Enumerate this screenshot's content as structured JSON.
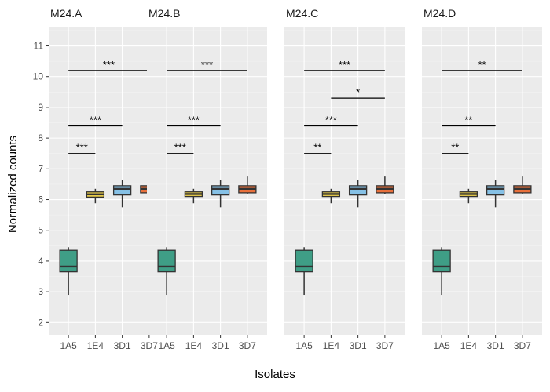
{
  "chart_data": {
    "type": "box",
    "xlabel": "Isolates",
    "ylabel": "Normalized counts",
    "ylim": [
      1.6,
      11.6
    ],
    "yticks": [
      2,
      3,
      4,
      5,
      6,
      7,
      8,
      9,
      10,
      11
    ],
    "categories": [
      "1A5",
      "1E4",
      "3D1",
      "3D7"
    ],
    "colors": {
      "1A5": "#3f9e86",
      "1E4": "#e8cc4a",
      "3D1": "#86c1e6",
      "3D7": "#e8703c"
    },
    "grid": true,
    "legend": "none",
    "panels": [
      {
        "title": "M24.A",
        "boxes": [
          {
            "category": "1A5",
            "min": 2.9,
            "q1": 3.65,
            "median": 3.82,
            "q3": 4.35,
            "max": 4.45
          },
          {
            "category": "1E4",
            "min": 5.88,
            "q1": 6.08,
            "median": 6.17,
            "q3": 6.25,
            "max": 6.35
          },
          {
            "category": "3D1",
            "min": 5.75,
            "q1": 6.15,
            "median": 6.35,
            "q3": 6.45,
            "max": 6.65
          },
          {
            "category": "3D7",
            "min": 6.18,
            "q1": 6.22,
            "median": 6.35,
            "q3": 6.45,
            "max": 6.75
          }
        ],
        "comparisons": [
          {
            "from": "1A5",
            "to": "1E4",
            "y": 7.5,
            "label": "***"
          },
          {
            "from": "1A5",
            "to": "3D1",
            "y": 8.4,
            "label": "***"
          },
          {
            "from": "1A5",
            "to": "3D7",
            "y": 10.2,
            "label": "***"
          }
        ]
      },
      {
        "title": "M24.B",
        "boxes": [
          {
            "category": "1A5",
            "min": 2.9,
            "q1": 3.65,
            "median": 3.82,
            "q3": 4.35,
            "max": 4.45
          },
          {
            "category": "1E4",
            "min": 5.88,
            "q1": 6.1,
            "median": 6.18,
            "q3": 6.25,
            "max": 6.35
          },
          {
            "category": "3D1",
            "min": 5.75,
            "q1": 6.15,
            "median": 6.35,
            "q3": 6.45,
            "max": 6.65
          },
          {
            "category": "3D7",
            "min": 6.18,
            "q1": 6.22,
            "median": 6.35,
            "q3": 6.45,
            "max": 6.75
          }
        ],
        "comparisons": [
          {
            "from": "1A5",
            "to": "1E4",
            "y": 7.5,
            "label": "***"
          },
          {
            "from": "1A5",
            "to": "3D1",
            "y": 8.4,
            "label": "***"
          },
          {
            "from": "1A5",
            "to": "3D7",
            "y": 10.2,
            "label": "***"
          }
        ]
      },
      {
        "title": "M24.C",
        "boxes": [
          {
            "category": "1A5",
            "min": 2.9,
            "q1": 3.65,
            "median": 3.82,
            "q3": 4.35,
            "max": 4.45
          },
          {
            "category": "1E4",
            "min": 5.88,
            "q1": 6.1,
            "median": 6.18,
            "q3": 6.25,
            "max": 6.35
          },
          {
            "category": "3D1",
            "min": 5.75,
            "q1": 6.15,
            "median": 6.35,
            "q3": 6.45,
            "max": 6.65
          },
          {
            "category": "3D7",
            "min": 6.18,
            "q1": 6.22,
            "median": 6.35,
            "q3": 6.45,
            "max": 6.75
          }
        ],
        "comparisons": [
          {
            "from": "1A5",
            "to": "1E4",
            "y": 7.5,
            "label": "**"
          },
          {
            "from": "1A5",
            "to": "3D1",
            "y": 8.4,
            "label": "***"
          },
          {
            "from": "1E4",
            "to": "3D7",
            "y": 9.3,
            "label": "*"
          },
          {
            "from": "1A5",
            "to": "3D7",
            "y": 10.2,
            "label": "***"
          }
        ]
      },
      {
        "title": "M24.D",
        "boxes": [
          {
            "category": "1A5",
            "min": 2.9,
            "q1": 3.65,
            "median": 3.82,
            "q3": 4.35,
            "max": 4.45
          },
          {
            "category": "1E4",
            "min": 5.88,
            "q1": 6.1,
            "median": 6.18,
            "q3": 6.25,
            "max": 6.35
          },
          {
            "category": "3D1",
            "min": 5.75,
            "q1": 6.15,
            "median": 6.35,
            "q3": 6.45,
            "max": 6.65
          },
          {
            "category": "3D7",
            "min": 6.18,
            "q1": 6.22,
            "median": 6.35,
            "q3": 6.45,
            "max": 6.75
          }
        ],
        "comparisons": [
          {
            "from": "1A5",
            "to": "1E4",
            "y": 7.5,
            "label": "**"
          },
          {
            "from": "1A5",
            "to": "3D1",
            "y": 8.4,
            "label": "**"
          },
          {
            "from": "1A5",
            "to": "3D7",
            "y": 10.2,
            "label": "**"
          }
        ]
      }
    ]
  }
}
